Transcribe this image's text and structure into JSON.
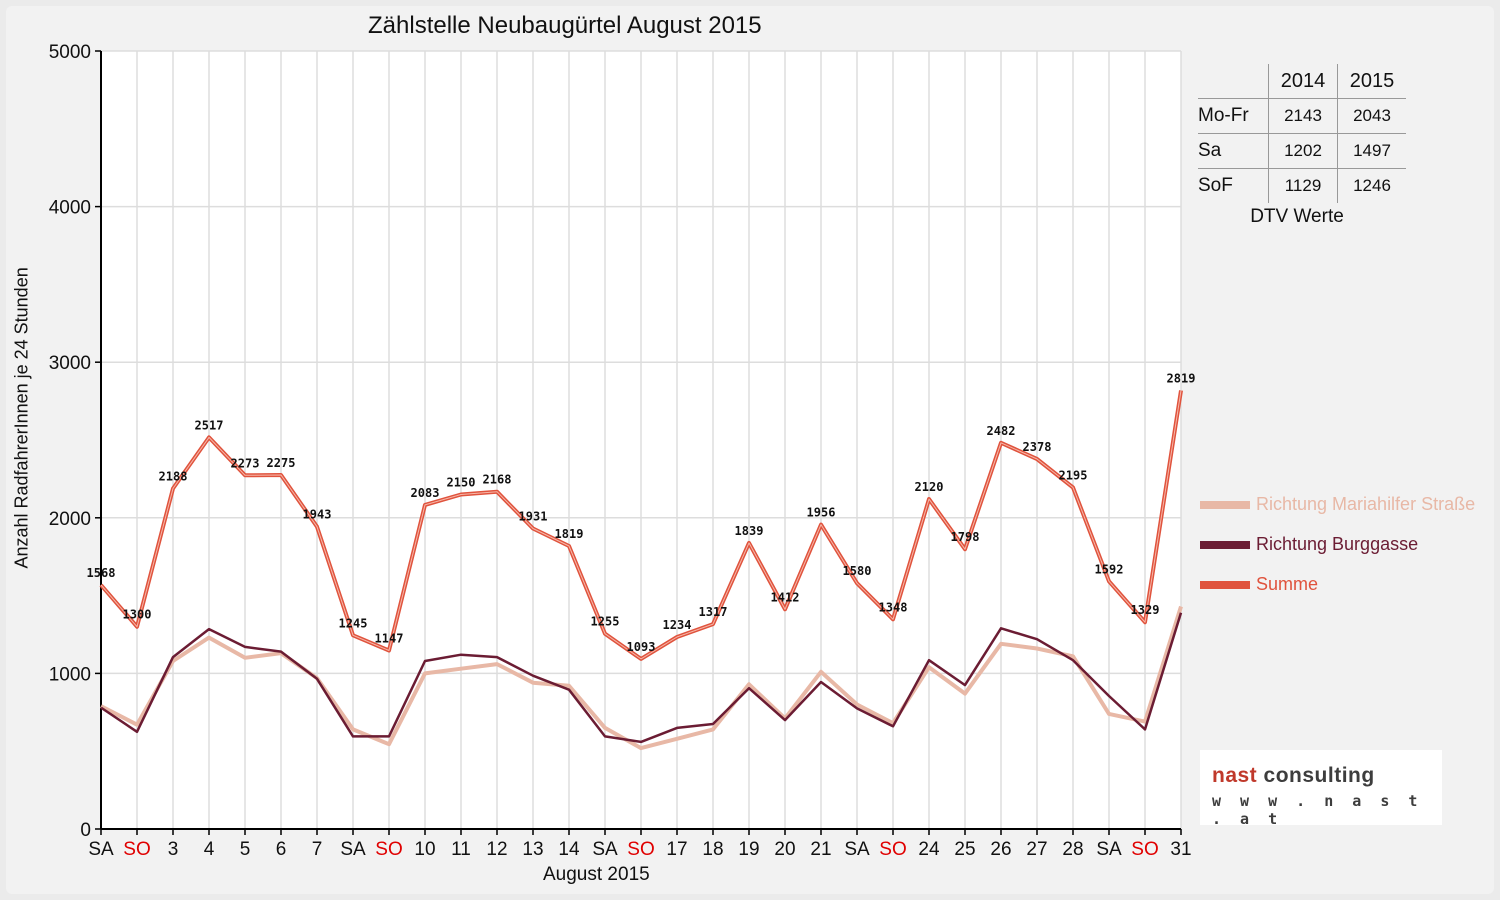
{
  "chart_data": {
    "type": "line",
    "title": "Zählstelle Neubaugürtel August 2015",
    "xlabel": "August 2015",
    "ylabel": "Anzahl RadfahrerInnen je 24 Stunden",
    "ylim": [
      0,
      5000
    ],
    "yticks": [
      "0",
      "1000",
      "2000",
      "3000",
      "4000",
      "5000"
    ],
    "grid": true,
    "legend_position": "right",
    "categories": [
      "SA",
      "SO",
      "3",
      "4",
      "5",
      "6",
      "7",
      "SA",
      "SO",
      "10",
      "11",
      "12",
      "13",
      "14",
      "SA",
      "SO",
      "17",
      "18",
      "19",
      "20",
      "21",
      "SA",
      "SO",
      "24",
      "25",
      "26",
      "27",
      "28",
      "SA",
      "SO",
      "31"
    ],
    "weekend_labels": [
      "SO"
    ],
    "series": [
      {
        "name": "Richtung Mariahilfer Straße",
        "color": "#e8b8a6",
        "width": 4,
        "values": [
          790,
          670,
          1080,
          1230,
          1100,
          1130,
          970,
          640,
          545,
          1000,
          1030,
          1060,
          940,
          920,
          650,
          520,
          580,
          640,
          930,
          710,
          1010,
          800,
          680,
          1040,
          870,
          1190,
          1160,
          1110,
          740,
          690,
          1430
        ]
      },
      {
        "name": "Richtung Burggasse",
        "color": "#6b1c33",
        "width": 2.5,
        "values": [
          780,
          625,
          1105,
          1285,
          1170,
          1140,
          965,
          595,
          595,
          1080,
          1120,
          1105,
          985,
          895,
          595,
          560,
          650,
          675,
          905,
          700,
          945,
          775,
          660,
          1085,
          925,
          1290,
          1220,
          1085,
          855,
          640,
          1390
        ]
      },
      {
        "name": "Summe",
        "color": "#e0533d",
        "width": 4,
        "labeled": true,
        "values": [
          1568,
          1300,
          2188,
          2517,
          2273,
          2275,
          1943,
          1245,
          1147,
          2083,
          2150,
          2168,
          1931,
          1819,
          1255,
          1093,
          1234,
          1317,
          1839,
          1412,
          1956,
          1580,
          1348,
          2120,
          1798,
          2482,
          2378,
          2195,
          1592,
          1329,
          2819
        ]
      }
    ]
  },
  "dtv_table": {
    "headers": [
      "2014",
      "2015"
    ],
    "rows": [
      {
        "label": "Mo-Fr",
        "v2014": "2143",
        "v2015": "2043"
      },
      {
        "label": "Sa",
        "v2014": "1202",
        "v2015": "1497"
      },
      {
        "label": "SoF",
        "v2014": "1129",
        "v2015": "1246"
      }
    ],
    "caption": "DTV Werte"
  },
  "logo": {
    "part1": "nast",
    "part2": "consulting",
    "url": "w w w . n a s t . a t"
  },
  "colors": {
    "weekend_label": "#e00000",
    "grid": "#dddddd",
    "axis": "#000000"
  }
}
